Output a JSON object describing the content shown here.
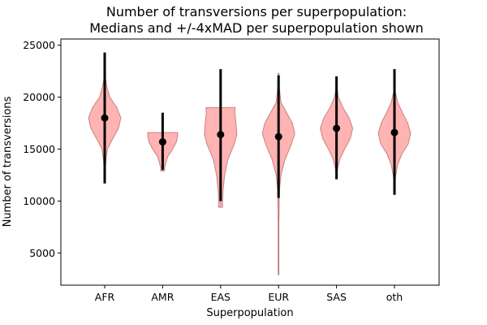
{
  "chart_data": {
    "type": "violin",
    "title": "Number of transversions per superpopulation:\nMedians and +/-4xMAD per superpopulation shown",
    "title_lines": [
      "Number of transversions per superpopulation:",
      "Medians and +/-4xMAD per superpopulation shown"
    ],
    "xlabel": "Superpopulation",
    "ylabel": "Number of transversions",
    "categories": [
      "AFR",
      "AMR",
      "EAS",
      "EUR",
      "SAS",
      "oth"
    ],
    "yticks": [
      5000,
      10000,
      15000,
      20000,
      25000
    ],
    "ytick_labels": [
      "5000",
      "10000",
      "15000",
      "20000",
      "25000"
    ],
    "ylim": [
      1900,
      25600
    ],
    "grid": false,
    "violin_color": "#ff9999",
    "violin_edge_color": "#a05050",
    "marker_color": "#000000",
    "series": [
      {
        "category": "AFR",
        "median": 18000,
        "mad_low": 11700,
        "mad_high": 24300,
        "data_min": 11700,
        "data_max": 22300,
        "profile": [
          [
            11700,
            0.0
          ],
          [
            13000,
            0.03
          ],
          [
            14000,
            0.08
          ],
          [
            15000,
            0.17
          ],
          [
            16000,
            0.5
          ],
          [
            17000,
            0.85
          ],
          [
            18000,
            1.0
          ],
          [
            19000,
            0.75
          ],
          [
            20000,
            0.32
          ],
          [
            21000,
            0.13
          ],
          [
            22000,
            0.03
          ],
          [
            22300,
            0.0
          ]
        ]
      },
      {
        "category": "AMR",
        "median": 15700,
        "mad_low": 13000,
        "mad_high": 18500,
        "data_min": 12900,
        "data_max": 16600,
        "profile": [
          [
            12900,
            0.12
          ],
          [
            13200,
            0.12
          ],
          [
            13700,
            0.2
          ],
          [
            14300,
            0.32
          ],
          [
            15000,
            0.62
          ],
          [
            15700,
            0.85
          ],
          [
            16300,
            0.92
          ],
          [
            16600,
            0.92
          ]
        ]
      },
      {
        "category": "EAS",
        "median": 16400,
        "mad_low": 10000,
        "mad_high": 22700,
        "data_min": 9400,
        "data_max": 19000,
        "profile": [
          [
            9400,
            0.12
          ],
          [
            10000,
            0.12
          ],
          [
            11000,
            0.15
          ],
          [
            12500,
            0.25
          ],
          [
            14000,
            0.45
          ],
          [
            15500,
            0.85
          ],
          [
            16400,
            1.0
          ],
          [
            17500,
            0.95
          ],
          [
            18500,
            0.88
          ],
          [
            19000,
            0.9
          ]
        ]
      },
      {
        "category": "EUR",
        "median": 16200,
        "mad_low": 10300,
        "mad_high": 22100,
        "data_min": 2900,
        "data_max": 22300,
        "profile": [
          [
            2900,
            0.02
          ],
          [
            8000,
            0.02
          ],
          [
            11000,
            0.05
          ],
          [
            12500,
            0.15
          ],
          [
            14000,
            0.4
          ],
          [
            15500,
            0.8
          ],
          [
            16500,
            1.0
          ],
          [
            17500,
            0.85
          ],
          [
            18500,
            0.5
          ],
          [
            19500,
            0.15
          ],
          [
            21000,
            0.04
          ],
          [
            22300,
            0.02
          ]
        ]
      },
      {
        "category": "SAS",
        "median": 17000,
        "mad_low": 12100,
        "mad_high": 22000,
        "data_min": 12300,
        "data_max": 21200,
        "profile": [
          [
            12300,
            0.0
          ],
          [
            13000,
            0.05
          ],
          [
            14000,
            0.2
          ],
          [
            15000,
            0.5
          ],
          [
            16000,
            0.85
          ],
          [
            17000,
            1.0
          ],
          [
            18000,
            0.78
          ],
          [
            19000,
            0.4
          ],
          [
            20000,
            0.12
          ],
          [
            21200,
            0.0
          ]
        ]
      },
      {
        "category": "oth",
        "median": 16600,
        "mad_low": 10600,
        "mad_high": 22700,
        "data_min": 11200,
        "data_max": 21200,
        "profile": [
          [
            11200,
            0.0
          ],
          [
            12500,
            0.08
          ],
          [
            13500,
            0.2
          ],
          [
            14500,
            0.45
          ],
          [
            15500,
            0.85
          ],
          [
            16500,
            1.0
          ],
          [
            17500,
            0.82
          ],
          [
            18500,
            0.5
          ],
          [
            19500,
            0.2
          ],
          [
            20500,
            0.05
          ],
          [
            21200,
            0.0
          ]
        ]
      }
    ]
  }
}
